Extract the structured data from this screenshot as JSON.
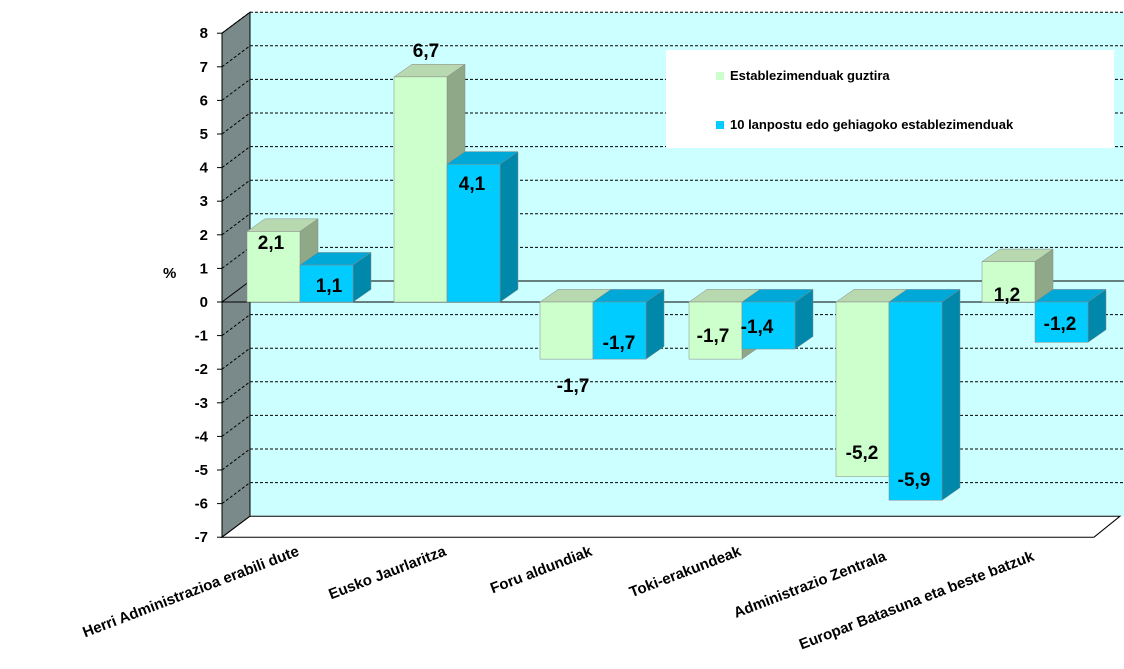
{
  "chart_data": {
    "type": "bar",
    "ylabel": "%",
    "ylim": [
      -7,
      8
    ],
    "yticks": [
      "8",
      "7",
      "6",
      "5",
      "4",
      "3",
      "2",
      "1",
      "0",
      "-1",
      "-2",
      "-3",
      "-4",
      "-5",
      "-6",
      "-7"
    ],
    "grid": true,
    "legend_position": "top-right",
    "categories": [
      "Herri Administrazioa erabili dute",
      "Eusko Jaurlaritza",
      "Foru aldundiak",
      "Toki-erakundeak",
      "Administrazio Zentrala",
      "Europar Batasuna eta beste batzuk"
    ],
    "series": [
      {
        "name": "Establezimenduak guztira",
        "color": "#ccffcc",
        "values": [
          2.1,
          6.7,
          -1.7,
          -1.7,
          -5.2,
          1.2
        ],
        "labels": [
          "2,1",
          "6,7",
          "-1,7",
          "-1,7",
          "-5,2",
          "1,2"
        ]
      },
      {
        "name": "10 lanpostu edo gehiagoko establezimenduak",
        "color": "#00ccff",
        "values": [
          1.1,
          4.1,
          -1.7,
          -1.4,
          -5.9,
          -1.2
        ],
        "labels": [
          "1,1",
          "4,1",
          "-1,7",
          "-1,4",
          "-5,9",
          "-1,2"
        ]
      }
    ]
  }
}
